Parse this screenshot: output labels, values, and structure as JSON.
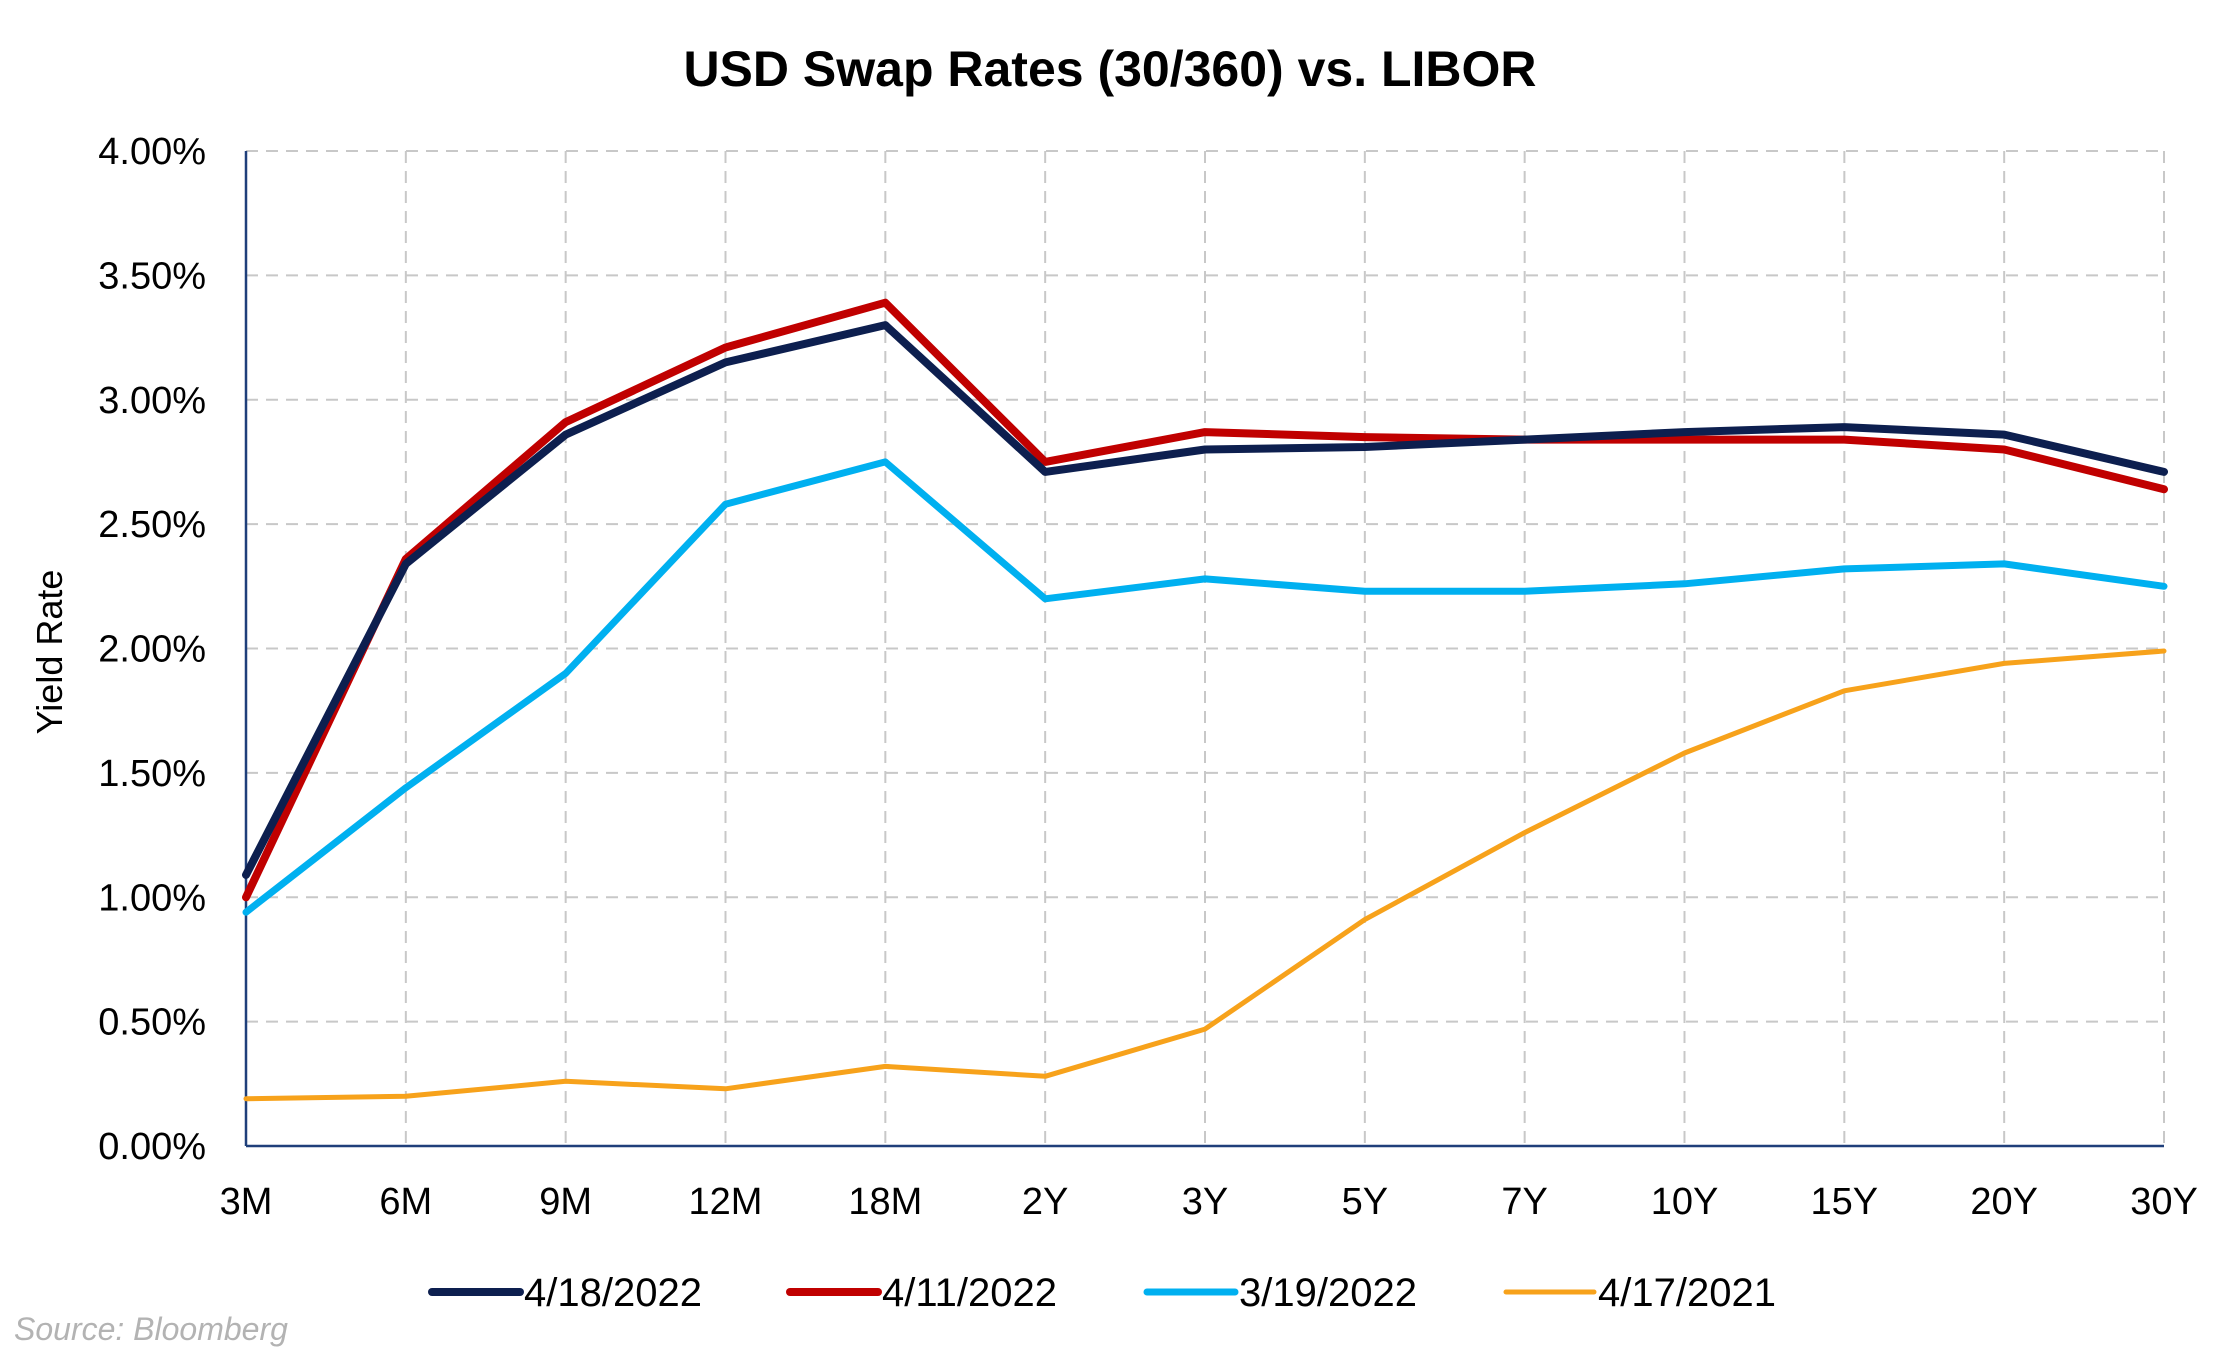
{
  "chart_data": {
    "type": "line",
    "title": "USD Swap Rates (30/360) vs. LIBOR",
    "xlabel": "",
    "ylabel": "Yield Rate",
    "categories": [
      "3M",
      "6M",
      "9M",
      "12M",
      "18M",
      "2Y",
      "3Y",
      "5Y",
      "7Y",
      "10Y",
      "15Y",
      "20Y",
      "30Y"
    ],
    "ylim": [
      0,
      4
    ],
    "yticks": [
      "0.00%",
      "0.50%",
      "1.00%",
      "1.50%",
      "2.00%",
      "2.50%",
      "3.00%",
      "3.50%",
      "4.00%"
    ],
    "grid": true,
    "legend_position": "bottom",
    "series": [
      {
        "name": "4/18/2022",
        "color": "#0d1f4f",
        "values": [
          1.09,
          2.34,
          2.86,
          3.15,
          3.3,
          2.71,
          2.8,
          2.81,
          2.84,
          2.87,
          2.89,
          2.86,
          2.71
        ]
      },
      {
        "name": "4/11/2022",
        "color": "#c00000",
        "values": [
          1.0,
          2.36,
          2.91,
          3.21,
          3.39,
          2.75,
          2.87,
          2.85,
          2.84,
          2.84,
          2.84,
          2.8,
          2.64
        ]
      },
      {
        "name": "3/19/2022",
        "color": "#00b0f0",
        "values": [
          0.94,
          1.44,
          1.9,
          2.58,
          2.75,
          2.2,
          2.28,
          2.23,
          2.23,
          2.26,
          2.32,
          2.34,
          2.25
        ]
      },
      {
        "name": "4/17/2021",
        "color": "#f7a21b",
        "values": [
          0.19,
          0.2,
          0.26,
          0.23,
          0.32,
          0.28,
          0.47,
          0.91,
          1.26,
          1.58,
          1.83,
          1.94,
          1.99
        ]
      }
    ]
  },
  "source": "Source: Bloomberg"
}
